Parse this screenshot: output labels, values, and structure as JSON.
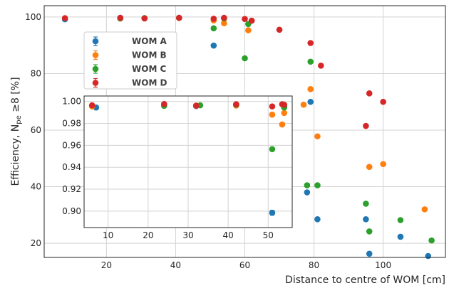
{
  "chart_data": [
    {
      "type": "scatter",
      "role": "main",
      "xlabel": "Distance to centre of WOM [cm]",
      "ylabel": "Efficiency, N",
      "ylabel_sub": "pe",
      "ylabel_rest": " ≥8 [%]",
      "xlim": [
        2,
        118
      ],
      "ylim": [
        15,
        104
      ],
      "xticks": [
        20,
        40,
        60,
        80,
        100
      ],
      "yticks": [
        20,
        40,
        60,
        80,
        100
      ],
      "grid": true,
      "legend_position": "upper-left",
      "series": [
        {
          "name": "WOM A",
          "color": "#1f77b4",
          "points": [
            [
              8,
              99.2
            ],
            [
              24,
              99.7
            ],
            [
              31,
              99.6
            ],
            [
              41,
              99.7
            ],
            [
              51,
              89.9
            ],
            [
              54,
              99.6
            ],
            [
              60,
              70.5
            ],
            [
              78,
              38
            ],
            [
              79,
              70
            ],
            [
              81,
              28.5
            ],
            [
              95,
              28.5
            ],
            [
              96,
              16.3
            ],
            [
              105,
              22.3
            ],
            [
              113,
              15.5
            ]
          ]
        },
        {
          "name": "WOM B",
          "color": "#ff7f0e",
          "points": [
            [
              24,
              99.5
            ],
            [
              31,
              99.6
            ],
            [
              41,
              99.7
            ],
            [
              51,
              98.8
            ],
            [
              54,
              97.8
            ],
            [
              61,
              95.3
            ],
            [
              68,
              63.8
            ],
            [
              77,
              69
            ],
            [
              79,
              74.5
            ],
            [
              81,
              57.8
            ],
            [
              96,
              47
            ],
            [
              100,
              48
            ],
            [
              112,
              32
            ]
          ]
        },
        {
          "name": "WOM C",
          "color": "#2ca02c",
          "points": [
            [
              24,
              99.5
            ],
            [
              31,
              99.6
            ],
            [
              41,
              99.7
            ],
            [
              51,
              96
            ],
            [
              54,
              99.5
            ],
            [
              60,
              85.4
            ],
            [
              61,
              97.5
            ],
            [
              69,
              50.5
            ],
            [
              78,
              40.5
            ],
            [
              79,
              84.2
            ],
            [
              81,
              40.5
            ],
            [
              95,
              34
            ],
            [
              96,
              24.2
            ],
            [
              105,
              28.2
            ],
            [
              114,
              21
            ]
          ]
        },
        {
          "name": "WOM D",
          "color": "#d62728",
          "points": [
            [
              8,
              99.6
            ],
            [
              24,
              99.7
            ],
            [
              31,
              99.5
            ],
            [
              41,
              99.7
            ],
            [
              51,
              99.4
            ],
            [
              54,
              99.7
            ],
            [
              60,
              99.3
            ],
            [
              62,
              98.7
            ],
            [
              70,
              95.5
            ],
            [
              79,
              90.8
            ],
            [
              82,
              82.8
            ],
            [
              95,
              61.5
            ],
            [
              96,
              73
            ],
            [
              100,
              70
            ]
          ]
        }
      ]
    },
    {
      "type": "scatter",
      "role": "inset",
      "xlim": [
        4,
        56
      ],
      "ylim": [
        0.885,
        1.005
      ],
      "xticks": [
        10,
        20,
        30,
        40,
        50
      ],
      "yticks": [
        0.9,
        0.92,
        0.94,
        0.96,
        0.98,
        1.0
      ],
      "grid": true,
      "series": [
        {
          "name": "WOM A",
          "color": "#1f77b4",
          "points": [
            [
              7,
              0.9945,
              0.0008
            ],
            [
              24,
              0.9965,
              0.0006
            ],
            [
              32,
              0.9958,
              0.0006
            ],
            [
              42,
              0.9966,
              0.0006
            ],
            [
              51,
              0.8985,
              0.0022
            ],
            [
              54,
              0.9955,
              0.0007
            ]
          ]
        },
        {
          "name": "WOM B",
          "color": "#ff7f0e",
          "points": [
            [
              6,
              0.9955,
              0.0007
            ],
            [
              24,
              0.9972,
              0.0006
            ],
            [
              32,
              0.9962,
              0.0006
            ],
            [
              42,
              0.9963,
              0.0006
            ],
            [
              51,
              0.988,
              0.0012
            ],
            [
              53.5,
              0.979,
              0.0015
            ],
            [
              54,
              0.9895,
              0.0012
            ]
          ]
        },
        {
          "name": "WOM C",
          "color": "#2ca02c",
          "points": [
            [
              24,
              0.996,
              0.0006
            ],
            [
              33,
              0.9965,
              0.0006
            ],
            [
              42,
              0.997,
              0.0006
            ],
            [
              51,
              0.9565,
              0.0018
            ],
            [
              54,
              0.9945,
              0.0008
            ]
          ]
        },
        {
          "name": "WOM D",
          "color": "#d62728",
          "points": [
            [
              6,
              0.9965,
              0.0006
            ],
            [
              24,
              0.9977,
              0.0006
            ],
            [
              32,
              0.9962,
              0.0006
            ],
            [
              42,
              0.9975,
              0.0006
            ],
            [
              51,
              0.9955,
              0.0007
            ],
            [
              53.5,
              0.9975,
              0.0006
            ],
            [
              54,
              0.997,
              0.0006
            ]
          ]
        }
      ]
    }
  ]
}
